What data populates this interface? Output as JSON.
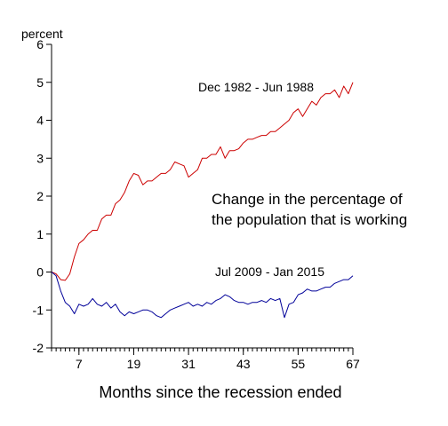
{
  "chart_data": {
    "type": "line",
    "ylabel": "percent",
    "xlabel": "Months since the recession ended",
    "annotation": [
      "Change in the percentage of",
      "the population that is working"
    ],
    "xlim": [
      1,
      67
    ],
    "ylim": [
      -2,
      6
    ],
    "x_ticks": [
      7,
      19,
      31,
      43,
      55,
      67
    ],
    "y_ticks": [
      -2,
      -1,
      0,
      1,
      2,
      3,
      4,
      5,
      6
    ],
    "grid": false,
    "series": [
      {
        "name": "Dec 1982 - Jun 1988",
        "color": "#cc0000",
        "x": [
          1,
          2,
          3,
          4,
          5,
          6,
          7,
          8,
          9,
          10,
          11,
          12,
          13,
          14,
          15,
          16,
          17,
          18,
          19,
          20,
          21,
          22,
          23,
          24,
          25,
          26,
          27,
          28,
          29,
          30,
          31,
          32,
          33,
          34,
          35,
          36,
          37,
          38,
          39,
          40,
          41,
          42,
          43,
          44,
          45,
          46,
          47,
          48,
          49,
          50,
          51,
          52,
          53,
          54,
          55,
          56,
          57,
          58,
          59,
          60,
          61,
          62,
          63,
          64,
          65,
          66,
          67
        ],
        "values": [
          0,
          -0.05,
          -0.2,
          -0.22,
          -0.05,
          0.4,
          0.75,
          0.85,
          1.0,
          1.1,
          1.1,
          1.4,
          1.5,
          1.5,
          1.8,
          1.9,
          2.1,
          2.4,
          2.6,
          2.55,
          2.3,
          2.4,
          2.4,
          2.5,
          2.6,
          2.6,
          2.7,
          2.9,
          2.85,
          2.8,
          2.5,
          2.6,
          2.7,
          3.0,
          3.0,
          3.1,
          3.1,
          3.3,
          3.0,
          3.2,
          3.2,
          3.25,
          3.4,
          3.5,
          3.5,
          3.55,
          3.6,
          3.6,
          3.7,
          3.7,
          3.8,
          3.9,
          4.0,
          4.2,
          4.3,
          4.1,
          4.3,
          4.5,
          4.4,
          4.6,
          4.7,
          4.7,
          4.8,
          4.6,
          4.9,
          4.7,
          5.0
        ]
      },
      {
        "name": "Jul 2009 - Jan 2015",
        "color": "#000099",
        "x": [
          1,
          2,
          3,
          4,
          5,
          6,
          7,
          8,
          9,
          10,
          11,
          12,
          13,
          14,
          15,
          16,
          17,
          18,
          19,
          20,
          21,
          22,
          23,
          24,
          25,
          26,
          27,
          28,
          29,
          30,
          31,
          32,
          33,
          34,
          35,
          36,
          37,
          38,
          39,
          40,
          41,
          42,
          43,
          44,
          45,
          46,
          47,
          48,
          49,
          50,
          51,
          52,
          53,
          54,
          55,
          56,
          57,
          58,
          59,
          60,
          61,
          62,
          63,
          64,
          65,
          66,
          67
        ],
        "values": [
          0,
          -0.1,
          -0.5,
          -0.8,
          -0.9,
          -1.1,
          -0.85,
          -0.9,
          -0.85,
          -0.7,
          -0.85,
          -0.9,
          -0.8,
          -0.95,
          -0.85,
          -1.05,
          -1.15,
          -1.05,
          -1.1,
          -1.05,
          -1.0,
          -1.0,
          -1.05,
          -1.15,
          -1.2,
          -1.1,
          -1.0,
          -0.95,
          -0.9,
          -0.85,
          -0.8,
          -0.9,
          -0.85,
          -0.9,
          -0.8,
          -0.85,
          -0.75,
          -0.7,
          -0.6,
          -0.65,
          -0.75,
          -0.8,
          -0.8,
          -0.85,
          -0.8,
          -0.8,
          -0.75,
          -0.8,
          -0.7,
          -0.75,
          -0.7,
          -1.2,
          -0.85,
          -0.8,
          -0.6,
          -0.55,
          -0.45,
          -0.5,
          -0.5,
          -0.45,
          -0.4,
          -0.4,
          -0.3,
          -0.25,
          -0.2,
          -0.2,
          -0.1
        ]
      }
    ]
  }
}
